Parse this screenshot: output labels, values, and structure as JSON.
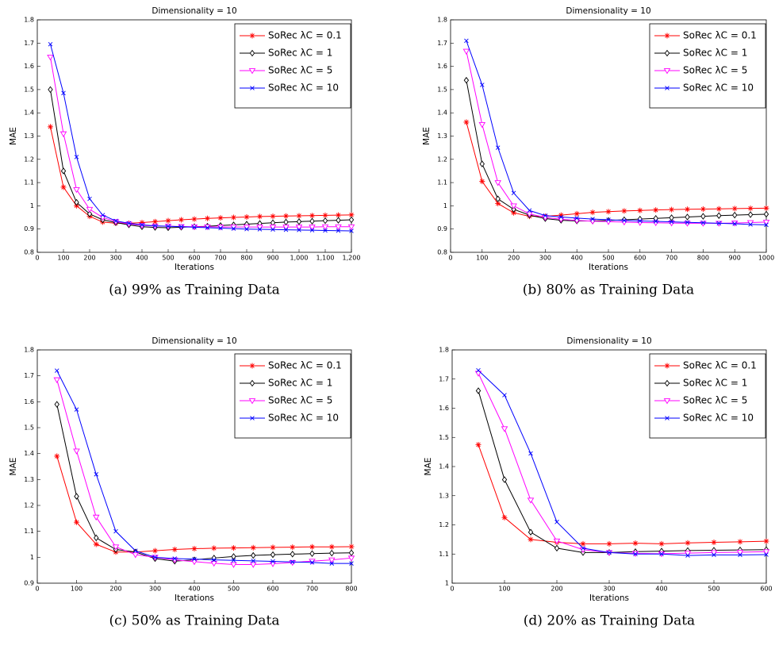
{
  "chart_data": [
    {
      "type": "line",
      "title": "Dimensionality = 10",
      "xlabel": "Iterations",
      "ylabel": "MAE",
      "caption": "(a) 99% as Training Data",
      "legend": "upper right",
      "x": [
        50,
        100,
        150,
        200,
        250,
        300,
        350,
        400,
        450,
        500,
        550,
        600,
        650,
        700,
        750,
        800,
        850,
        900,
        950,
        1000,
        1050,
        1100,
        1150,
        1200
      ],
      "xlim": [
        0,
        1200
      ],
      "xticks": [
        0,
        100,
        200,
        300,
        400,
        500,
        600,
        700,
        800,
        900,
        {
          "value": 1000,
          "label": "1,000"
        },
        {
          "value": 1100,
          "label": "1,100"
        },
        {
          "value": 1200,
          "label": "1,200"
        }
      ],
      "ylim": [
        0.8,
        1.8
      ],
      "yticks": [
        0.8,
        0.9,
        1,
        1.1,
        1.2,
        1.3,
        1.4,
        1.5,
        1.6,
        1.7,
        1.8
      ],
      "series": [
        {
          "name": "SoRec λC = 0.1",
          "color": "#ff0000",
          "marker": "star",
          "values": [
            1.34,
            1.08,
            1.0,
            0.955,
            0.93,
            0.925,
            0.925,
            0.928,
            0.932,
            0.936,
            0.94,
            0.943,
            0.946,
            0.948,
            0.95,
            0.952,
            0.954,
            0.955,
            0.956,
            0.957,
            0.958,
            0.959,
            0.96,
            0.961
          ]
        },
        {
          "name": "SoRec λC = 1",
          "color": "#000000",
          "marker": "diamond",
          "values": [
            1.5,
            1.15,
            1.015,
            0.965,
            0.94,
            0.928,
            0.918,
            0.91,
            0.907,
            0.906,
            0.908,
            0.91,
            0.912,
            0.915,
            0.918,
            0.921,
            0.924,
            0.927,
            0.93,
            0.932,
            0.934,
            0.936,
            0.938,
            0.94
          ]
        },
        {
          "name": "SoRec λC = 5",
          "color": "#ff00ff",
          "marker": "triangle-down",
          "values": [
            1.64,
            1.31,
            1.07,
            0.985,
            0.95,
            0.932,
            0.922,
            0.916,
            0.913,
            0.912,
            0.911,
            0.91,
            0.91,
            0.909,
            0.909,
            0.909,
            0.909,
            0.909,
            0.909,
            0.909,
            0.909,
            0.91,
            0.91,
            0.91
          ]
        },
        {
          "name": "SoRec λC = 10",
          "color": "#0000ff",
          "marker": "x",
          "values": [
            1.695,
            1.485,
            1.21,
            1.03,
            0.96,
            0.935,
            0.925,
            0.918,
            0.914,
            0.912,
            0.91,
            0.908,
            0.906,
            0.904,
            0.902,
            0.9,
            0.899,
            0.898,
            0.897,
            0.896,
            0.895,
            0.894,
            0.893,
            0.892
          ]
        }
      ]
    },
    {
      "type": "line",
      "title": "Dimensionality = 10",
      "xlabel": "Iterations",
      "ylabel": "MAE",
      "caption": "(b) 80% as Training Data",
      "legend": "upper right",
      "x": [
        50,
        100,
        150,
        200,
        250,
        300,
        350,
        400,
        450,
        500,
        550,
        600,
        650,
        700,
        750,
        800,
        850,
        900,
        950,
        1000
      ],
      "xlim": [
        0,
        1000
      ],
      "xticks": [
        0,
        100,
        200,
        300,
        400,
        500,
        600,
        700,
        800,
        900,
        1000
      ],
      "ylim": [
        0.8,
        1.8
      ],
      "yticks": [
        0.8,
        0.9,
        1,
        1.1,
        1.2,
        1.3,
        1.4,
        1.5,
        1.6,
        1.7,
        1.8
      ],
      "series": [
        {
          "name": "SoRec λC = 0.1",
          "color": "#ff0000",
          "marker": "star",
          "values": [
            1.36,
            1.105,
            1.01,
            0.97,
            0.955,
            0.955,
            0.96,
            0.966,
            0.972,
            0.975,
            0.978,
            0.98,
            0.982,
            0.984,
            0.985,
            0.986,
            0.987,
            0.988,
            0.989,
            0.99
          ]
        },
        {
          "name": "SoRec λC = 1",
          "color": "#000000",
          "marker": "diamond",
          "values": [
            1.54,
            1.18,
            1.03,
            0.985,
            0.96,
            0.945,
            0.938,
            0.935,
            0.935,
            0.937,
            0.94,
            0.943,
            0.946,
            0.949,
            0.952,
            0.955,
            0.958,
            0.96,
            0.962,
            0.964
          ]
        },
        {
          "name": "SoRec λC = 5",
          "color": "#ff00ff",
          "marker": "triangle-down",
          "values": [
            1.665,
            1.35,
            1.1,
            1.0,
            0.965,
            0.95,
            0.942,
            0.937,
            0.934,
            0.932,
            0.93,
            0.928,
            0.927,
            0.926,
            0.925,
            0.925,
            0.925,
            0.926,
            0.928,
            0.93
          ]
        },
        {
          "name": "SoRec λC = 10",
          "color": "#0000ff",
          "marker": "x",
          "values": [
            1.71,
            1.52,
            1.25,
            1.055,
            0.98,
            0.958,
            0.952,
            0.947,
            0.943,
            0.94,
            0.937,
            0.935,
            0.933,
            0.931,
            0.929,
            0.927,
            0.925,
            0.923,
            0.92,
            0.918
          ]
        }
      ]
    },
    {
      "type": "line",
      "title": "Dimensionality = 10",
      "xlabel": "Iterations",
      "ylabel": "MAE",
      "caption": "(c) 50% as Training Data",
      "legend": "upper right",
      "x": [
        50,
        100,
        150,
        200,
        250,
        300,
        350,
        400,
        450,
        500,
        550,
        600,
        650,
        700,
        750,
        800
      ],
      "xlim": [
        0,
        800
      ],
      "xticks": [
        0,
        100,
        200,
        300,
        400,
        500,
        600,
        700,
        800
      ],
      "ylim": [
        0.9,
        1.8
      ],
      "yticks": [
        0.9,
        1,
        1.1,
        1.2,
        1.3,
        1.4,
        1.5,
        1.6,
        1.7,
        1.8
      ],
      "series": [
        {
          "name": "SoRec λC = 0.1",
          "color": "#ff0000",
          "marker": "star",
          "values": [
            1.39,
            1.135,
            1.05,
            1.02,
            1.02,
            1.025,
            1.03,
            1.033,
            1.035,
            1.036,
            1.037,
            1.038,
            1.039,
            1.04,
            1.04,
            1.041
          ]
        },
        {
          "name": "SoRec λC = 1",
          "color": "#000000",
          "marker": "diamond",
          "values": [
            1.59,
            1.235,
            1.075,
            1.03,
            1.02,
            0.995,
            0.985,
            0.99,
            0.997,
            1.003,
            1.007,
            1.01,
            1.012,
            1.014,
            1.016,
            1.017
          ]
        },
        {
          "name": "SoRec λC = 5",
          "color": "#ff00ff",
          "marker": "triangle-down",
          "values": [
            1.685,
            1.41,
            1.155,
            1.04,
            1.01,
            1.0,
            0.99,
            0.983,
            0.977,
            0.972,
            0.972,
            0.975,
            0.98,
            0.985,
            0.99,
            0.997
          ]
        },
        {
          "name": "SoRec λC = 10",
          "color": "#0000ff",
          "marker": "x",
          "values": [
            1.72,
            1.57,
            1.32,
            1.1,
            1.025,
            1.0,
            0.995,
            0.993,
            0.99,
            0.988,
            0.986,
            0.984,
            0.982,
            0.98,
            0.976,
            0.976
          ]
        }
      ]
    },
    {
      "type": "line",
      "title": "Dimensionality = 10",
      "xlabel": "Iterations",
      "ylabel": "MAE",
      "caption": "(d) 20% as Training Data",
      "legend": "upper right",
      "x": [
        50,
        100,
        150,
        200,
        250,
        300,
        350,
        400,
        450,
        500,
        550,
        600
      ],
      "xlim": [
        0,
        600
      ],
      "xticks": [
        0,
        100,
        200,
        300,
        400,
        500,
        600
      ],
      "ylim": [
        1,
        1.8
      ],
      "yticks": [
        1,
        1.1,
        1.2,
        1.3,
        1.4,
        1.5,
        1.6,
        1.7,
        1.8
      ],
      "series": [
        {
          "name": "SoRec λC = 0.1",
          "color": "#ff0000",
          "marker": "star",
          "values": [
            1.475,
            1.225,
            1.15,
            1.14,
            1.135,
            1.135,
            1.137,
            1.135,
            1.138,
            1.14,
            1.142,
            1.144
          ]
        },
        {
          "name": "SoRec λC = 1",
          "color": "#000000",
          "marker": "diamond",
          "values": [
            1.66,
            1.355,
            1.175,
            1.12,
            1.105,
            1.105,
            1.108,
            1.11,
            1.112,
            1.113,
            1.114,
            1.115
          ]
        },
        {
          "name": "SoRec λC = 5",
          "color": "#ff00ff",
          "marker": "triangle-down",
          "values": [
            1.72,
            1.53,
            1.285,
            1.145,
            1.115,
            1.105,
            1.102,
            1.101,
            1.103,
            1.105,
            1.106,
            1.108
          ]
        },
        {
          "name": "SoRec λC = 10",
          "color": "#0000ff",
          "marker": "x",
          "values": [
            1.73,
            1.645,
            1.445,
            1.21,
            1.12,
            1.105,
            1.1,
            1.1,
            1.095,
            1.097,
            1.097,
            1.098
          ]
        }
      ]
    }
  ]
}
